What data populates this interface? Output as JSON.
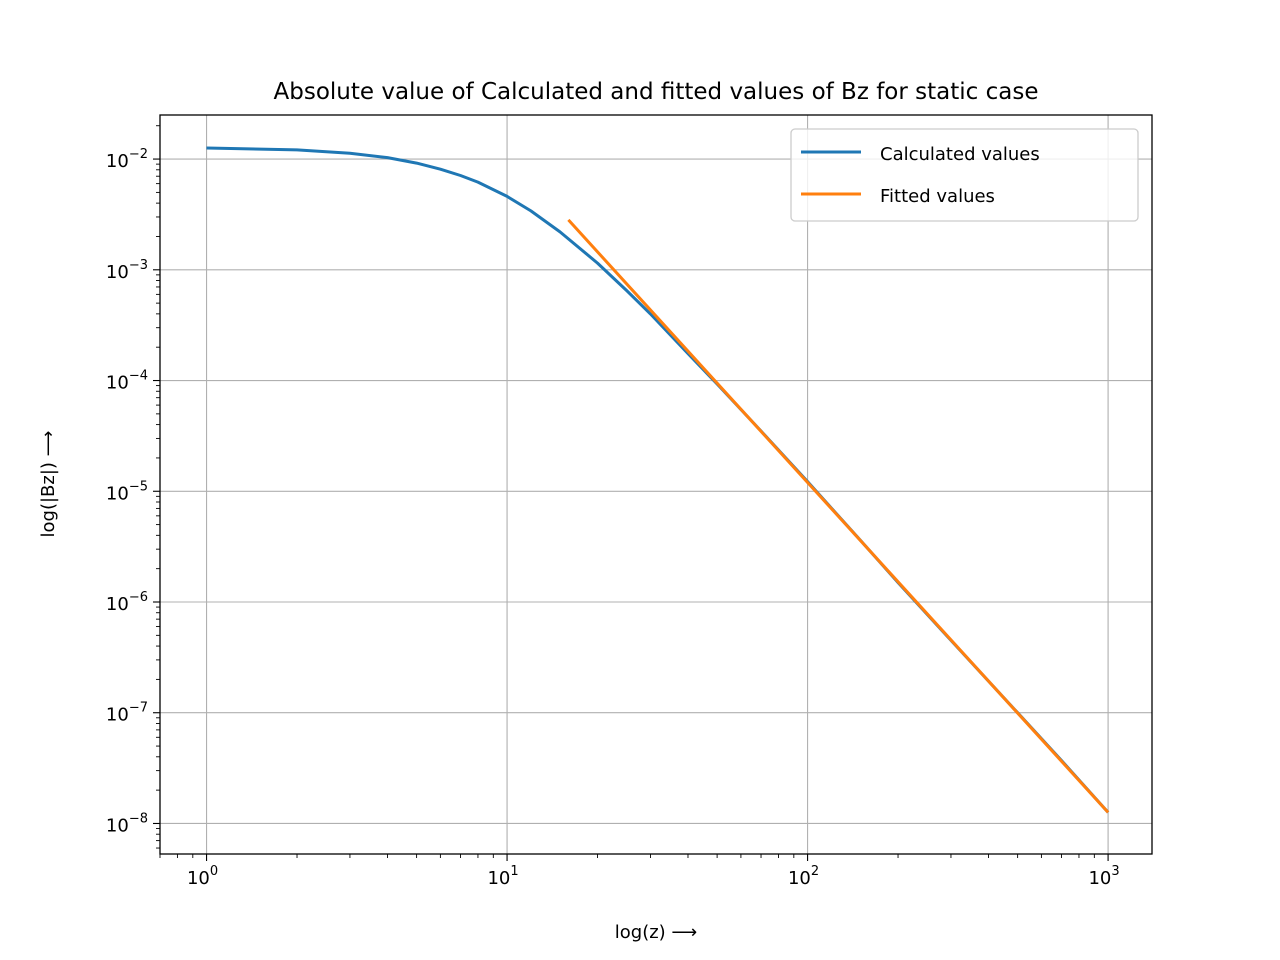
{
  "chart_data": {
    "type": "line",
    "title": "Absolute value of Calculated and fitted values of Bz for static case",
    "xlabel": "log(z) ⟶",
    "ylabel": "log(|Bz|) ⟶",
    "xscale": "log",
    "yscale": "log",
    "xlim": [
      0.7,
      1400
    ],
    "ylim": [
      5.3e-09,
      0.025
    ],
    "grid": true,
    "legend_position": "top-right",
    "x_ticks": [
      {
        "value": 1,
        "base": "10",
        "exp": "0"
      },
      {
        "value": 10,
        "base": "10",
        "exp": "1"
      },
      {
        "value": 100,
        "base": "10",
        "exp": "2"
      },
      {
        "value": 1000,
        "base": "10",
        "exp": "3"
      }
    ],
    "y_ticks": [
      {
        "value": 0.01,
        "base": "10",
        "exp": "−2"
      },
      {
        "value": 0.001,
        "base": "10",
        "exp": "−3"
      },
      {
        "value": 0.0001,
        "base": "10",
        "exp": "−4"
      },
      {
        "value": 1e-05,
        "base": "10",
        "exp": "−5"
      },
      {
        "value": 1e-06,
        "base": "10",
        "exp": "−6"
      },
      {
        "value": 1e-07,
        "base": "10",
        "exp": "−7"
      },
      {
        "value": 1e-08,
        "base": "10",
        "exp": "−8"
      }
    ],
    "series": [
      {
        "name": "Calculated values",
        "color": "#1f77b4",
        "x": [
          1,
          2,
          3,
          4,
          5,
          6,
          7,
          8,
          10,
          12,
          15,
          20,
          25,
          30,
          40,
          50,
          70,
          100,
          150,
          200,
          300,
          500,
          700,
          1000
        ],
        "y": [
          0.0126,
          0.0121,
          0.0113,
          0.0103,
          0.0092,
          0.0081,
          0.0071,
          0.0062,
          0.0046,
          0.0034,
          0.0022,
          0.00115,
          0.00065,
          0.0004,
          0.000175,
          9.3e-05,
          3.5e-05,
          1.22e-05,
          3.6e-06,
          1.5e-06,
          4.5e-07,
          1e-07,
          3.7e-08,
          1.26e-08
        ]
      },
      {
        "name": "Fitted values",
        "color": "#ff7f0e",
        "x": [
          16,
          1000
        ],
        "y": [
          0.00282,
          1.26e-08
        ]
      }
    ]
  }
}
